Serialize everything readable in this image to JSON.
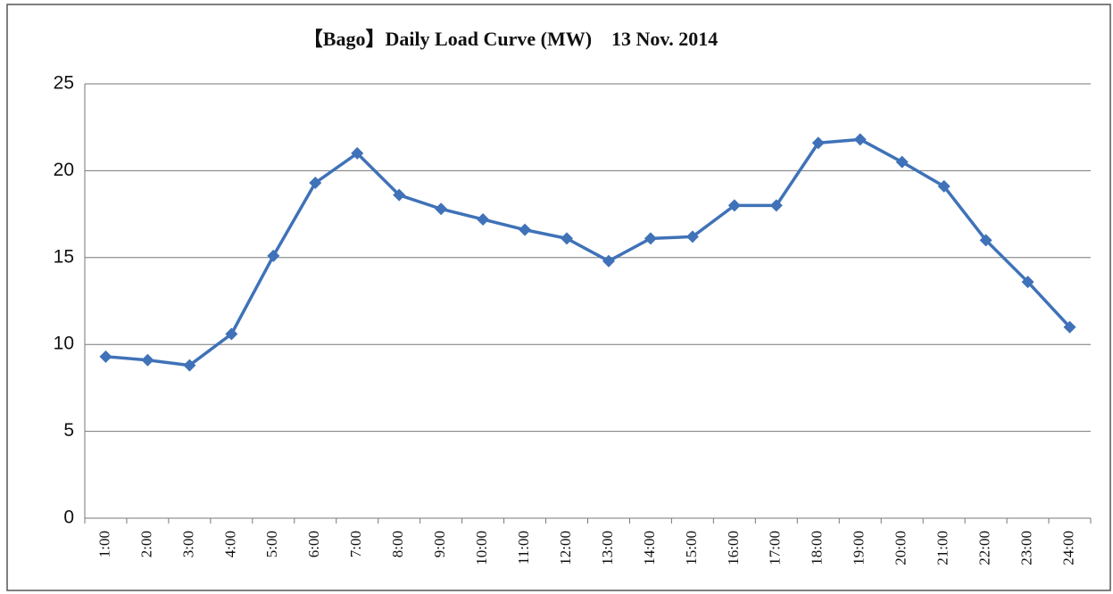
{
  "chart_data": {
    "type": "line",
    "title": "【Bago】Daily Load Curve (MW)    13 Nov. 2014",
    "categories": [
      "1:00",
      "2:00",
      "3:00",
      "4:00",
      "5:00",
      "6:00",
      "7:00",
      "8:00",
      "9:00",
      "10:00",
      "11:00",
      "12:00",
      "13:00",
      "14:00",
      "15:00",
      "16:00",
      "17:00",
      "18:00",
      "19:00",
      "20:00",
      "21:00",
      "22:00",
      "23:00",
      "24:00"
    ],
    "values": [
      9.3,
      9.1,
      8.8,
      10.6,
      15.1,
      19.3,
      21.0,
      18.6,
      17.8,
      17.2,
      16.6,
      16.1,
      14.8,
      16.1,
      16.2,
      18.0,
      18.0,
      21.6,
      21.8,
      20.5,
      19.1,
      16.0,
      13.6,
      11.0
    ],
    "color": "#3f72b8",
    "ylim": [
      0,
      25
    ],
    "yticks": [
      0,
      5,
      10,
      15,
      20,
      25
    ],
    "grid": true
  }
}
